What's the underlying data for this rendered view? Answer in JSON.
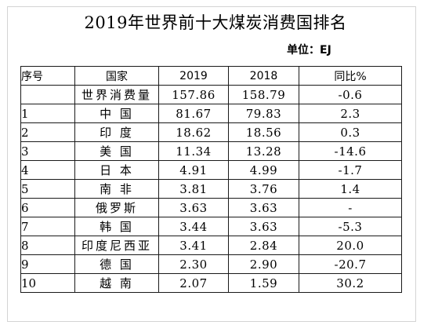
{
  "title": "2019年世界前十大煤炭消费国排名",
  "unit": "单位：EJ",
  "table": {
    "headers": {
      "rank": "序号",
      "country": "国家",
      "y2019": "2019",
      "y2018": "2018",
      "yoy": "同比%"
    },
    "rows": [
      {
        "rank": "",
        "country": "世界消费量",
        "y2019": "157.86",
        "y2018": "158.79",
        "yoy": "-0.6"
      },
      {
        "rank": "1",
        "country": "中 国",
        "y2019": "81.67",
        "y2018": "79.83",
        "yoy": "2.3"
      },
      {
        "rank": "2",
        "country": "印 度",
        "y2019": "18.62",
        "y2018": "18.56",
        "yoy": "0.3"
      },
      {
        "rank": "3",
        "country": "美 国",
        "y2019": "11.34",
        "y2018": "13.28",
        "yoy": "-14.6"
      },
      {
        "rank": "4",
        "country": "日 本",
        "y2019": "4.91",
        "y2018": "4.99",
        "yoy": "-1.7"
      },
      {
        "rank": "5",
        "country": "南 非",
        "y2019": "3.81",
        "y2018": "3.76",
        "yoy": "1.4"
      },
      {
        "rank": "6",
        "country": "俄罗斯",
        "y2019": "3.63",
        "y2018": "3.63",
        "yoy": "-"
      },
      {
        "rank": "7",
        "country": "韩 国",
        "y2019": "3.44",
        "y2018": "3.63",
        "yoy": "-5.3"
      },
      {
        "rank": "8",
        "country": "印度尼西亚",
        "y2019": "3.41",
        "y2018": "2.84",
        "yoy": "20.0"
      },
      {
        "rank": "9",
        "country": "德 国",
        "y2019": "2.30",
        "y2018": "2.90",
        "yoy": "-20.7"
      },
      {
        "rank": "10",
        "country": "越 南",
        "y2019": "2.07",
        "y2018": "1.59",
        "yoy": "30.2"
      }
    ]
  }
}
